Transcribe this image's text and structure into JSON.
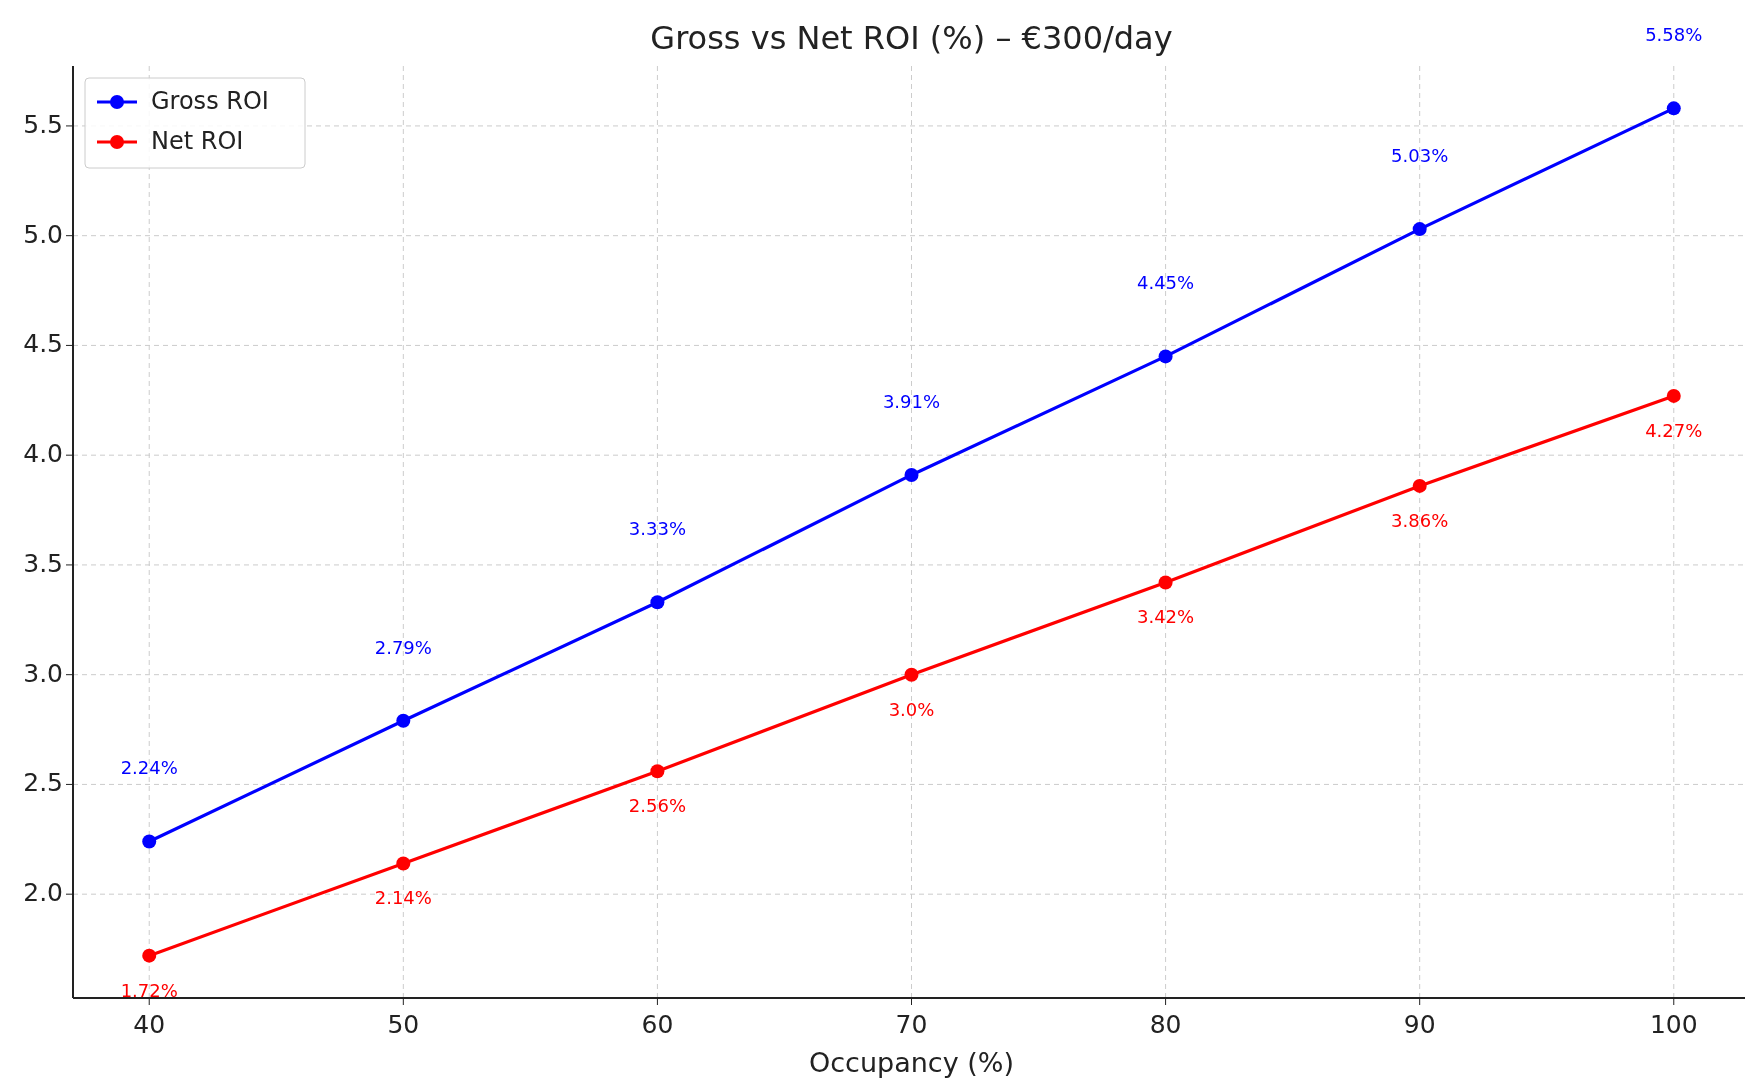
{
  "chart_data": {
    "type": "line",
    "title": "Gross vs Net ROI (%) – €300/day",
    "xlabel": "Occupancy (%)",
    "x": [
      40,
      50,
      60,
      70,
      80,
      90,
      100
    ],
    "series": [
      {
        "name": "Gross ROI",
        "color": "#0000ff",
        "values": [
          2.24,
          2.79,
          3.33,
          3.91,
          4.45,
          5.03,
          5.58
        ],
        "value_labels": [
          "2.24%",
          "2.79%",
          "3.33%",
          "3.91%",
          "4.45%",
          "5.03%",
          "5.58%"
        ]
      },
      {
        "name": "Net ROI",
        "color": "#ff0000",
        "values": [
          1.72,
          2.14,
          2.56,
          3.0,
          3.42,
          3.86,
          4.27
        ],
        "value_labels": [
          "1.72%",
          "2.14%",
          "2.56%",
          "3.0%",
          "3.42%",
          "3.86%",
          "4.27%"
        ]
      }
    ],
    "xlim": [
      37,
      103
    ],
    "ylim": [
      1.527,
      5.773
    ],
    "xticks": [
      40,
      50,
      60,
      70,
      80,
      90,
      100
    ],
    "yticks": [
      {
        "value": 2,
        "label": "2.0"
      },
      {
        "value": 2.5,
        "label": "2.5"
      },
      {
        "value": 3,
        "label": "3.0"
      },
      {
        "value": 3.5,
        "label": "3.5"
      },
      {
        "value": 4,
        "label": "4.0"
      },
      {
        "value": 4.5,
        "label": "4.5"
      },
      {
        "value": 5,
        "label": "5.0"
      },
      {
        "value": 5.5,
        "label": "5.5"
      }
    ],
    "grid": true,
    "legend": "top left",
    "marker": "circle",
    "line_style": "solid"
  }
}
